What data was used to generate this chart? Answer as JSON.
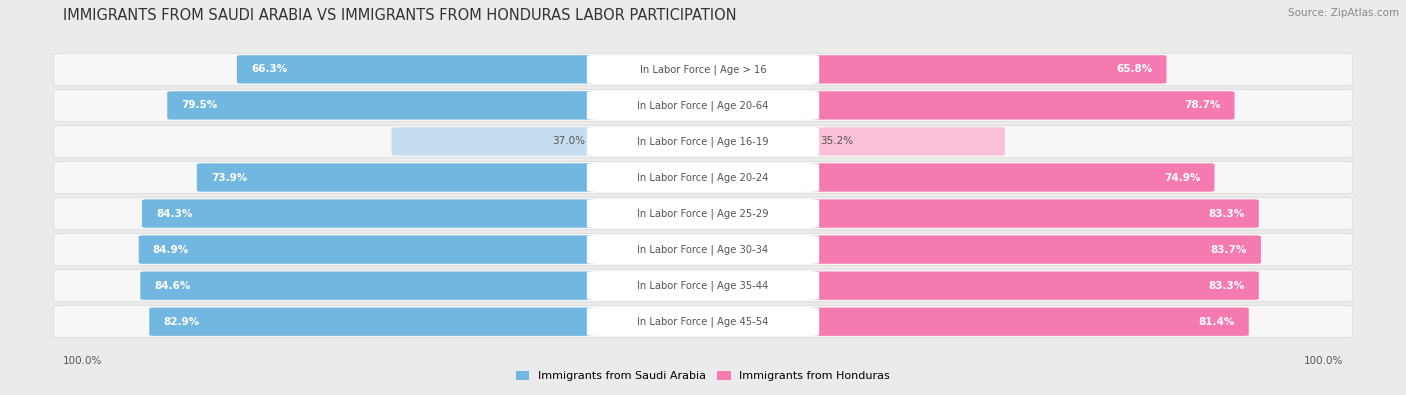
{
  "title": "IMMIGRANTS FROM SAUDI ARABIA VS IMMIGRANTS FROM HONDURAS LABOR PARTICIPATION",
  "source": "Source: ZipAtlas.com",
  "categories": [
    "In Labor Force | Age > 16",
    "In Labor Force | Age 20-64",
    "In Labor Force | Age 16-19",
    "In Labor Force | Age 20-24",
    "In Labor Force | Age 25-29",
    "In Labor Force | Age 30-34",
    "In Labor Force | Age 35-44",
    "In Labor Force | Age 45-54"
  ],
  "saudi_values": [
    66.3,
    79.5,
    37.0,
    73.9,
    84.3,
    84.9,
    84.6,
    82.9
  ],
  "honduras_values": [
    65.8,
    78.7,
    35.2,
    74.9,
    83.3,
    83.7,
    83.3,
    81.4
  ],
  "saudi_color": "#72b7e0",
  "saudi_color_light": "#c5ddf0",
  "honduras_color": "#f47ab0",
  "honduras_color_light": "#f9c0d8",
  "background_color": "#ebebeb",
  "row_bg_color": "#f7f7f8",
  "title_fontsize": 10.5,
  "label_fontsize": 7.2,
  "value_fontsize": 7.5,
  "legend_fontsize": 8,
  "legend_saudi": "Immigrants from Saudi Arabia",
  "legend_honduras": "Immigrants from Honduras"
}
